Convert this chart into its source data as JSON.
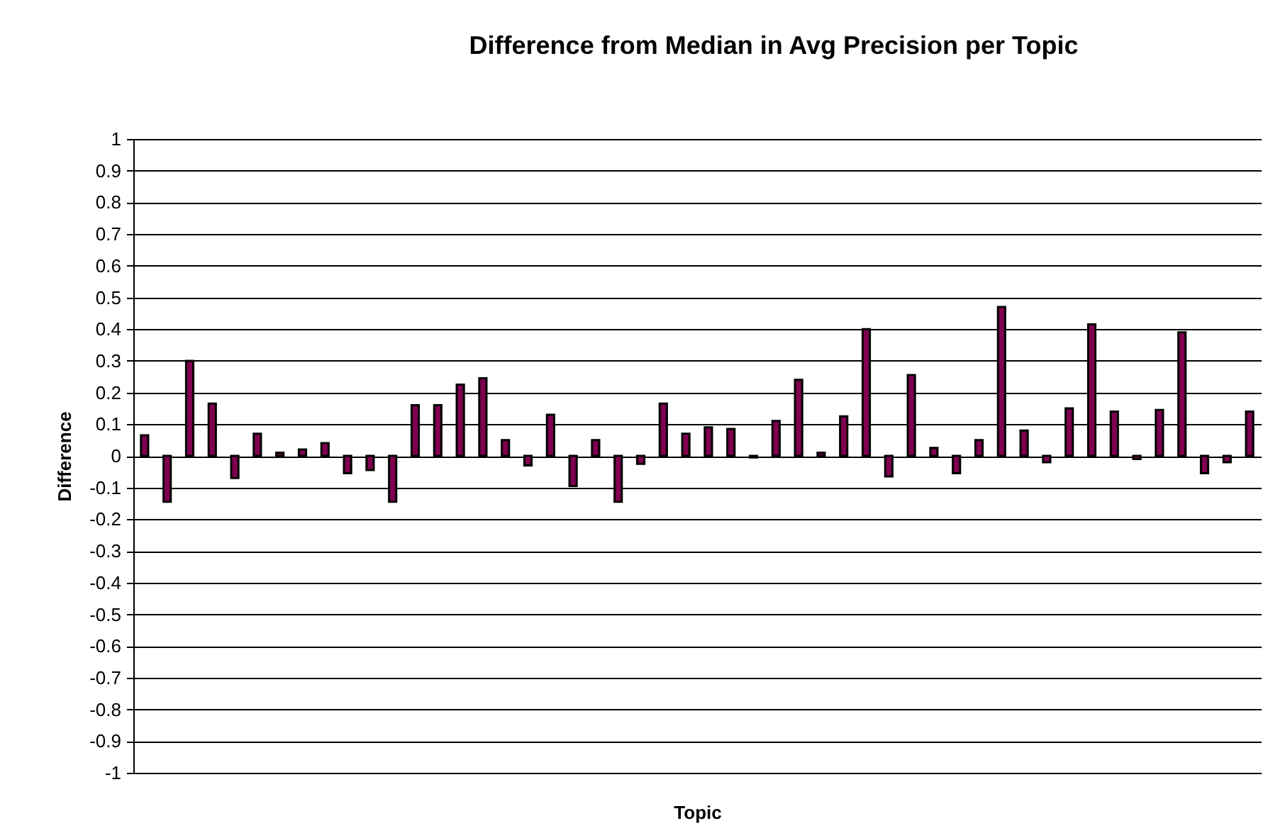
{
  "chart_data": {
    "type": "bar",
    "title": "Difference from Median in Avg Precision per Topic",
    "xlabel": "Topic",
    "ylabel": "Difference",
    "categories": [
      null,
      null,
      null,
      null,
      null,
      null,
      null,
      null,
      null,
      null,
      null,
      null,
      null,
      null,
      null,
      null,
      null,
      null,
      null,
      null,
      null,
      null,
      null,
      null,
      null,
      null,
      null,
      null,
      null,
      null,
      null,
      null,
      null,
      null,
      null,
      null,
      null,
      null,
      null,
      null,
      null,
      null,
      null,
      null,
      null,
      null,
      null,
      null,
      null,
      null
    ],
    "series": [
      {
        "color": "#800050",
        "values": [
          0.065,
          -0.145,
          0.3,
          0.165,
          -0.07,
          0.07,
          0.01,
          0.02,
          0.04,
          -0.055,
          -0.045,
          -0.145,
          0.16,
          0.16,
          0.225,
          0.245,
          0.05,
          -0.03,
          0.13,
          -0.095,
          0.05,
          -0.145,
          -0.025,
          0.165,
          0.07,
          0.09,
          0.085,
          -0.005,
          0.11,
          0.24,
          0.01,
          0.125,
          0.4,
          -0.065,
          0.255,
          0.025,
          -0.055,
          0.05,
          0.47,
          0.08,
          -0.02,
          0.15,
          0.415,
          0.14,
          -0.01,
          0.145,
          0.39,
          -0.055,
          -0.02,
          0.14
        ]
      }
    ],
    "ylim": [
      -1,
      1
    ],
    "yticks": [
      -1,
      -0.9,
      -0.8,
      -0.7,
      -0.6,
      -0.5,
      -0.4,
      -0.3,
      -0.2,
      -0.1,
      0,
      0.1,
      0.2,
      0.3,
      0.4,
      0.5,
      0.6,
      0.7,
      0.8,
      0.9,
      1
    ],
    "grid": "y",
    "tick_labels": "y"
  }
}
